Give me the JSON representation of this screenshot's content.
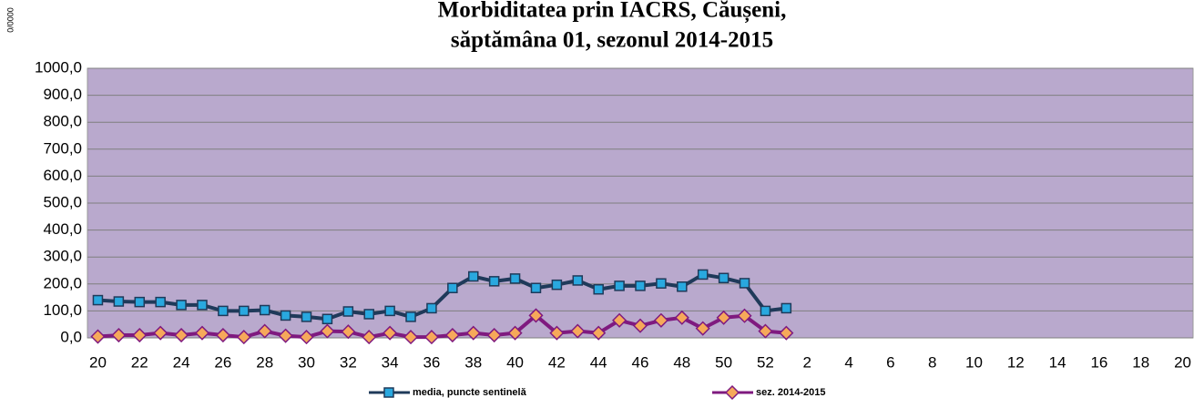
{
  "chart_data": {
    "type": "line",
    "title": [
      "Morbiditatea prin IACRS, Căușeni,",
      "săptămâna 01, sezonul  2014-2015"
    ],
    "y_label": "0/0000",
    "categories": [
      "20",
      null,
      "22",
      null,
      "24",
      null,
      "26",
      null,
      "28",
      null,
      "30",
      null,
      "32",
      null,
      "34",
      null,
      "36",
      null,
      "38",
      null,
      "40",
      null,
      "42",
      null,
      "44",
      null,
      "46",
      null,
      "48",
      null,
      "50",
      null,
      "52",
      null,
      "2",
      null,
      "4",
      null,
      "6",
      null,
      "8",
      null,
      "10",
      null,
      "12",
      null,
      "14",
      null,
      "16",
      null,
      "18",
      null,
      "20"
    ],
    "series": [
      {
        "name": "media, puncte sentinelă",
        "color": "#1f3a5a",
        "marker_color": "#29a8df",
        "marker": "square",
        "values": [
          140,
          135,
          133,
          133,
          122,
          122,
          100,
          100,
          103,
          83,
          78,
          70,
          98,
          88,
          100,
          78,
          110,
          185,
          228,
          210,
          220,
          185,
          197,
          213,
          180,
          193,
          193,
          202,
          190,
          235,
          222,
          203,
          100,
          110,
          null,
          null,
          null,
          null,
          null,
          null,
          null,
          null,
          null,
          null,
          null,
          null,
          null,
          null,
          null,
          null,
          null,
          null,
          null
        ]
      },
      {
        "name": "sez. 2014-2015",
        "color": "#7f1a7f",
        "marker_color": "#f6a95a",
        "marker": "diamond",
        "values": [
          5,
          10,
          10,
          18,
          10,
          18,
          10,
          3,
          25,
          8,
          3,
          25,
          23,
          3,
          18,
          3,
          3,
          10,
          18,
          10,
          18,
          83,
          18,
          25,
          18,
          65,
          45,
          65,
          75,
          35,
          75,
          82,
          25,
          18,
          null,
          null,
          null,
          null,
          null,
          null,
          null,
          null,
          null,
          null,
          null,
          null,
          null,
          null,
          null,
          null,
          null,
          null,
          null
        ]
      }
    ],
    "ylim": [
      0,
      1000
    ],
    "yticks": [
      {
        "value": 0,
        "label": "0,0"
      },
      {
        "value": 100,
        "label": "100,0"
      },
      {
        "value": 200,
        "label": "200,0"
      },
      {
        "value": 300,
        "label": "300,0"
      },
      {
        "value": 400,
        "label": "400,0"
      },
      {
        "value": 500,
        "label": "500,0"
      },
      {
        "value": 600,
        "label": "600,0"
      },
      {
        "value": 700,
        "label": "700,0"
      },
      {
        "value": 800,
        "label": "800,0"
      },
      {
        "value": 900,
        "label": "900,0"
      },
      {
        "value": 1000,
        "label": "1000,0"
      }
    ],
    "grid": true,
    "plot_background": "#b9a9cd",
    "legend": "bottom"
  }
}
